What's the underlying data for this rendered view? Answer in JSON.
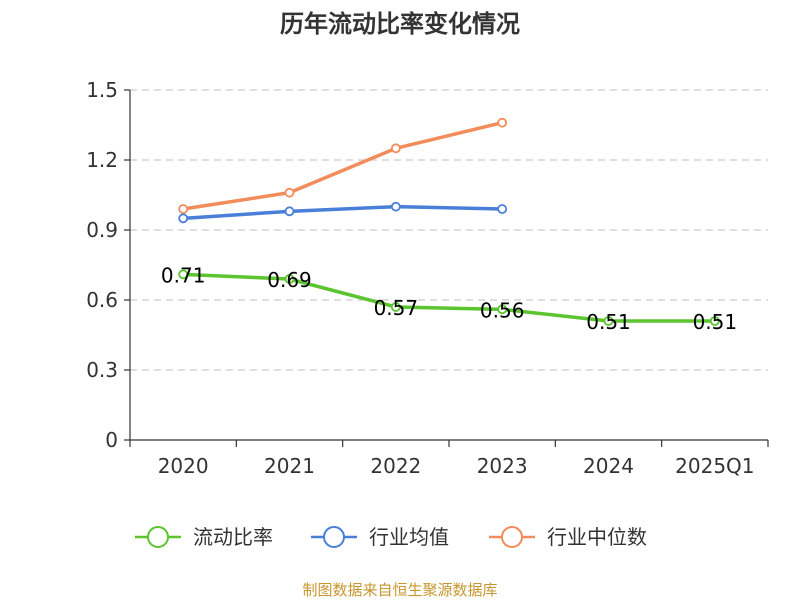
{
  "chart_data": {
    "type": "line",
    "title": "历年流动比率变化情况",
    "categories": [
      "2020",
      "2021",
      "2022",
      "2023",
      "2024",
      "2025Q1"
    ],
    "y_ticks": [
      "0",
      "0.3",
      "0.6",
      "0.9",
      "1.2",
      "1.5"
    ],
    "ylim": [
      0,
      1.5
    ],
    "grid": true,
    "legend_position": "bottom",
    "series": [
      {
        "name": "流动比率",
        "color": "#5bc42f",
        "values": [
          0.71,
          0.69,
          0.57,
          0.56,
          0.51,
          0.51
        ],
        "labels": [
          "0.71",
          "0.69",
          "0.57",
          "0.56",
          "0.51",
          "0.51"
        ]
      },
      {
        "name": "行业均值",
        "color": "#4a7fd9",
        "values": [
          0.95,
          0.98,
          1.0,
          0.99,
          null,
          null
        ]
      },
      {
        "name": "行业中位数",
        "color": "#f28c5a",
        "values": [
          0.99,
          1.06,
          1.25,
          1.36,
          null,
          null
        ]
      }
    ]
  },
  "source_note": "制图数据来自恒生聚源数据库"
}
